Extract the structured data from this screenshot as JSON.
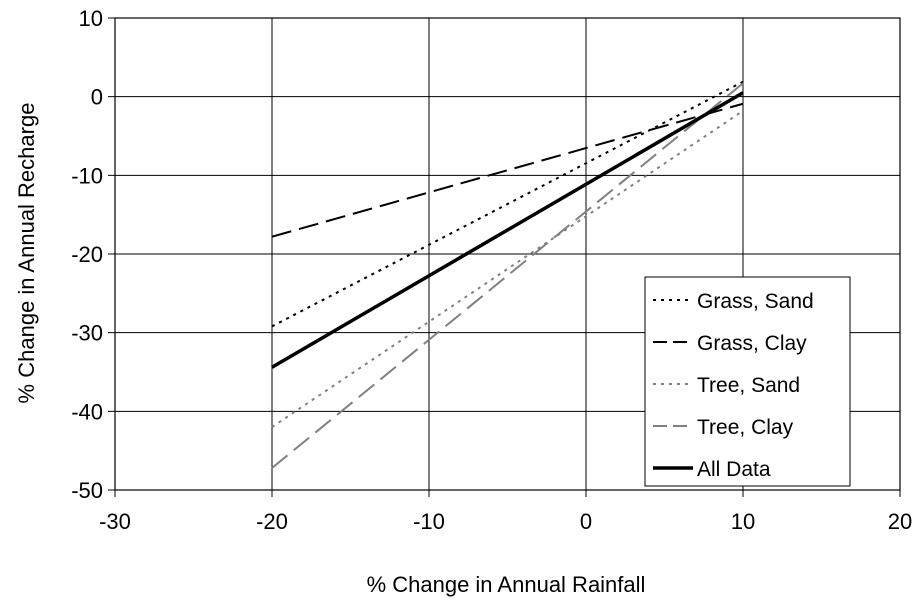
{
  "chart_data": {
    "type": "line",
    "xlabel": "% Change in Annual Rainfall",
    "ylabel": "% Change in Annual Recharge",
    "xlim": [
      -30,
      20
    ],
    "ylim": [
      -50,
      10
    ],
    "xticks": [
      "-30",
      "-20",
      "-10",
      "0",
      "10",
      "20"
    ],
    "yticks": [
      "10",
      "0",
      "-10",
      "-20",
      "-30",
      "-40",
      "-50"
    ],
    "grid": true,
    "legend_position": "bottom-right",
    "series": [
      {
        "name": "Grass, Sand",
        "x": [
          -20,
          10
        ],
        "y": [
          -29.2,
          1.9
        ],
        "color": "#000000",
        "dash": "dotted",
        "width": "thin"
      },
      {
        "name": "Grass, Clay",
        "x": [
          -20,
          10
        ],
        "y": [
          -17.8,
          -0.9
        ],
        "color": "#000000",
        "dash": "dashed",
        "width": "thin"
      },
      {
        "name": "Tree, Sand",
        "x": [
          -20,
          10
        ],
        "y": [
          -42.0,
          -1.8
        ],
        "color": "#808080",
        "dash": "dotted",
        "width": "thin"
      },
      {
        "name": "Tree, Clay",
        "x": [
          -20,
          10
        ],
        "y": [
          -47.2,
          1.7
        ],
        "color": "#808080",
        "dash": "dashed",
        "width": "thin"
      },
      {
        "name": "All Data",
        "x": [
          -20,
          10
        ],
        "y": [
          -34.4,
          0.5
        ],
        "color": "#000000",
        "dash": "solid",
        "width": "thick"
      }
    ]
  }
}
